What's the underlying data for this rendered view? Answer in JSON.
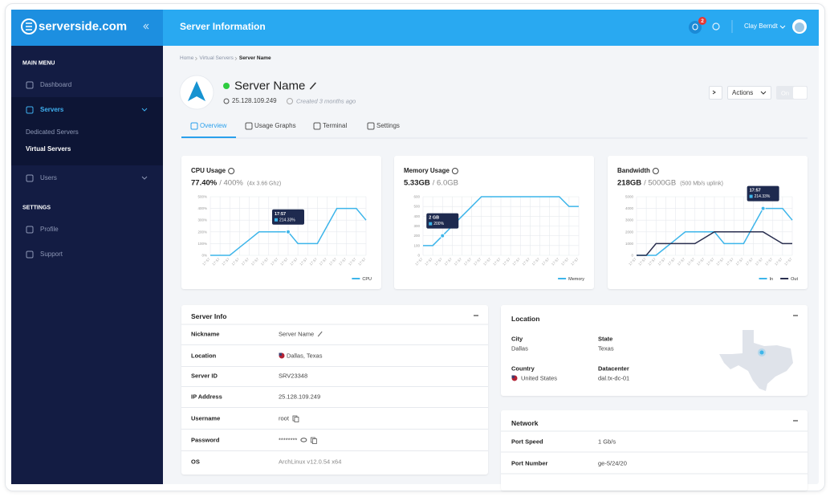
{
  "sidebar": {
    "logo": "serverside.com",
    "main_menu": "MAIN MENU",
    "menu": [
      "Dashboard",
      "Servers",
      "Users"
    ],
    "submenu": [
      "Dedicated Servers",
      "Virtual Servers"
    ],
    "settings_title": "SETTINGS",
    "settings": [
      "Profile",
      "Support"
    ]
  },
  "header": {
    "title": "Server Information",
    "notifications": "2",
    "user": "Clay Berndt"
  },
  "breadcrumb": [
    "Home",
    "Virtual Servers",
    "Server Name"
  ],
  "server": {
    "name": "Server Name",
    "ip": "25.128.109.249",
    "created": "Created 3 months ago",
    "actions": "Actions",
    "toggle": "On"
  },
  "tabs": [
    "Overview",
    "Usage Graphs",
    "Terminal",
    "Settings"
  ],
  "chart_data": [
    {
      "type": "line",
      "title": "CPU Usage",
      "summary": "77.40%",
      "capacity": "/ 400%",
      "note": "(4x 3.66 Ghz)",
      "categories": [
        "17:57",
        "17:57",
        "17:57",
        "17:57",
        "17:57",
        "17:57",
        "17:57",
        "17:57",
        "17:57",
        "17:57",
        "17:57",
        "17:57",
        "17:57",
        "17:57",
        "17:57",
        "17:57",
        "17:57"
      ],
      "series": [
        {
          "name": "CPU",
          "color": "#3db5ea",
          "values": [
            0,
            0,
            0,
            67,
            133,
            200,
            200,
            200,
            200,
            100,
            100,
            100,
            250,
            400,
            400,
            400,
            300
          ]
        }
      ],
      "ylim": [
        0,
        500
      ],
      "yticks": [
        {
          "value": 0,
          "label": "0%"
        },
        {
          "value": 100,
          "label": "100%"
        },
        {
          "value": 200,
          "label": "200%"
        },
        {
          "value": 300,
          "label": "300%"
        },
        {
          "value": 400,
          "label": "400%"
        },
        {
          "value": 500,
          "label": "500%"
        }
      ],
      "grid": true,
      "tooltip": {
        "time": "17:57",
        "value": "214.33%"
      }
    },
    {
      "type": "line",
      "title": "Memory Usage",
      "summary": "5.33GB",
      "capacity": "/ 6.0GB",
      "categories": [
        "17:57",
        "17:57",
        "17:57",
        "17:57",
        "17:57",
        "17:57",
        "17:57",
        "17:57",
        "17:57",
        "17:57",
        "17:57",
        "17:57",
        "17:57",
        "17:57",
        "17:57",
        "17:57",
        "17:57"
      ],
      "series": [
        {
          "name": "Memory",
          "color": "#3db5ea",
          "values": [
            100,
            100,
            200,
            300,
            400,
            500,
            600,
            600,
            600,
            600,
            600,
            600,
            600,
            600,
            600,
            500,
            500
          ]
        }
      ],
      "ylim": [
        0,
        600
      ],
      "yticks": [
        0,
        100,
        200,
        300,
        400,
        500,
        600
      ],
      "grid": true,
      "tooltip": {
        "time": "2 GB",
        "value": "200%"
      }
    },
    {
      "type": "line",
      "title": "Bandwidth",
      "summary": "218GB",
      "capacity": "/ 5000GB",
      "note": "(500 Mb/s uplink)",
      "categories": [
        "17:57",
        "17:57",
        "17:57",
        "17:57",
        "17:57",
        "17:57",
        "17:57",
        "17:57",
        "17:57",
        "17:57",
        "17:57",
        "17:57",
        "17:57",
        "17:57",
        "17:57",
        "17:57",
        "17:57"
      ],
      "series": [
        {
          "name": "In",
          "color": "#3db5ea",
          "values": [
            0,
            0,
            0,
            667,
            1333,
            2000,
            2000,
            2000,
            2000,
            1000,
            1000,
            1000,
            2500,
            4000,
            4000,
            4000,
            3000
          ]
        },
        {
          "name": "Out",
          "color": "#2a2f4f",
          "values": [
            0,
            0,
            1000,
            1000,
            1000,
            1000,
            1000,
            1500,
            2000,
            2000,
            2000,
            2000,
            2000,
            2000,
            1500,
            1000,
            1000
          ]
        }
      ],
      "ylim": [
        0,
        5000
      ],
      "yticks": [
        0,
        1000,
        2000,
        3000,
        4000,
        5000
      ],
      "grid": true,
      "tooltip": {
        "time": "17:57",
        "value": "214.33%"
      }
    }
  ],
  "server_info": {
    "title": "Server Info",
    "rows": [
      [
        "Nickname",
        "Server Name"
      ],
      [
        "Location",
        "Dallas, Texas"
      ],
      [
        "Server ID",
        "SRV23348"
      ],
      [
        "IP Address",
        "25.128.109.249"
      ],
      [
        "Username",
        "root"
      ],
      [
        "Password",
        "********"
      ],
      [
        "OS",
        "ArchLinux v12.0.54 x64"
      ]
    ]
  },
  "location": {
    "title": "Location",
    "fields": [
      [
        "City",
        "Dallas"
      ],
      [
        "State",
        "Texas"
      ],
      [
        "Country",
        "United States"
      ],
      [
        "Datacenter",
        "dal.tx-dc-01"
      ]
    ]
  },
  "network": {
    "title": "Network",
    "rows": [
      [
        "Port Speed",
        "1 Gb/s"
      ],
      [
        "Port Number",
        "ge-5/24/20"
      ]
    ]
  }
}
